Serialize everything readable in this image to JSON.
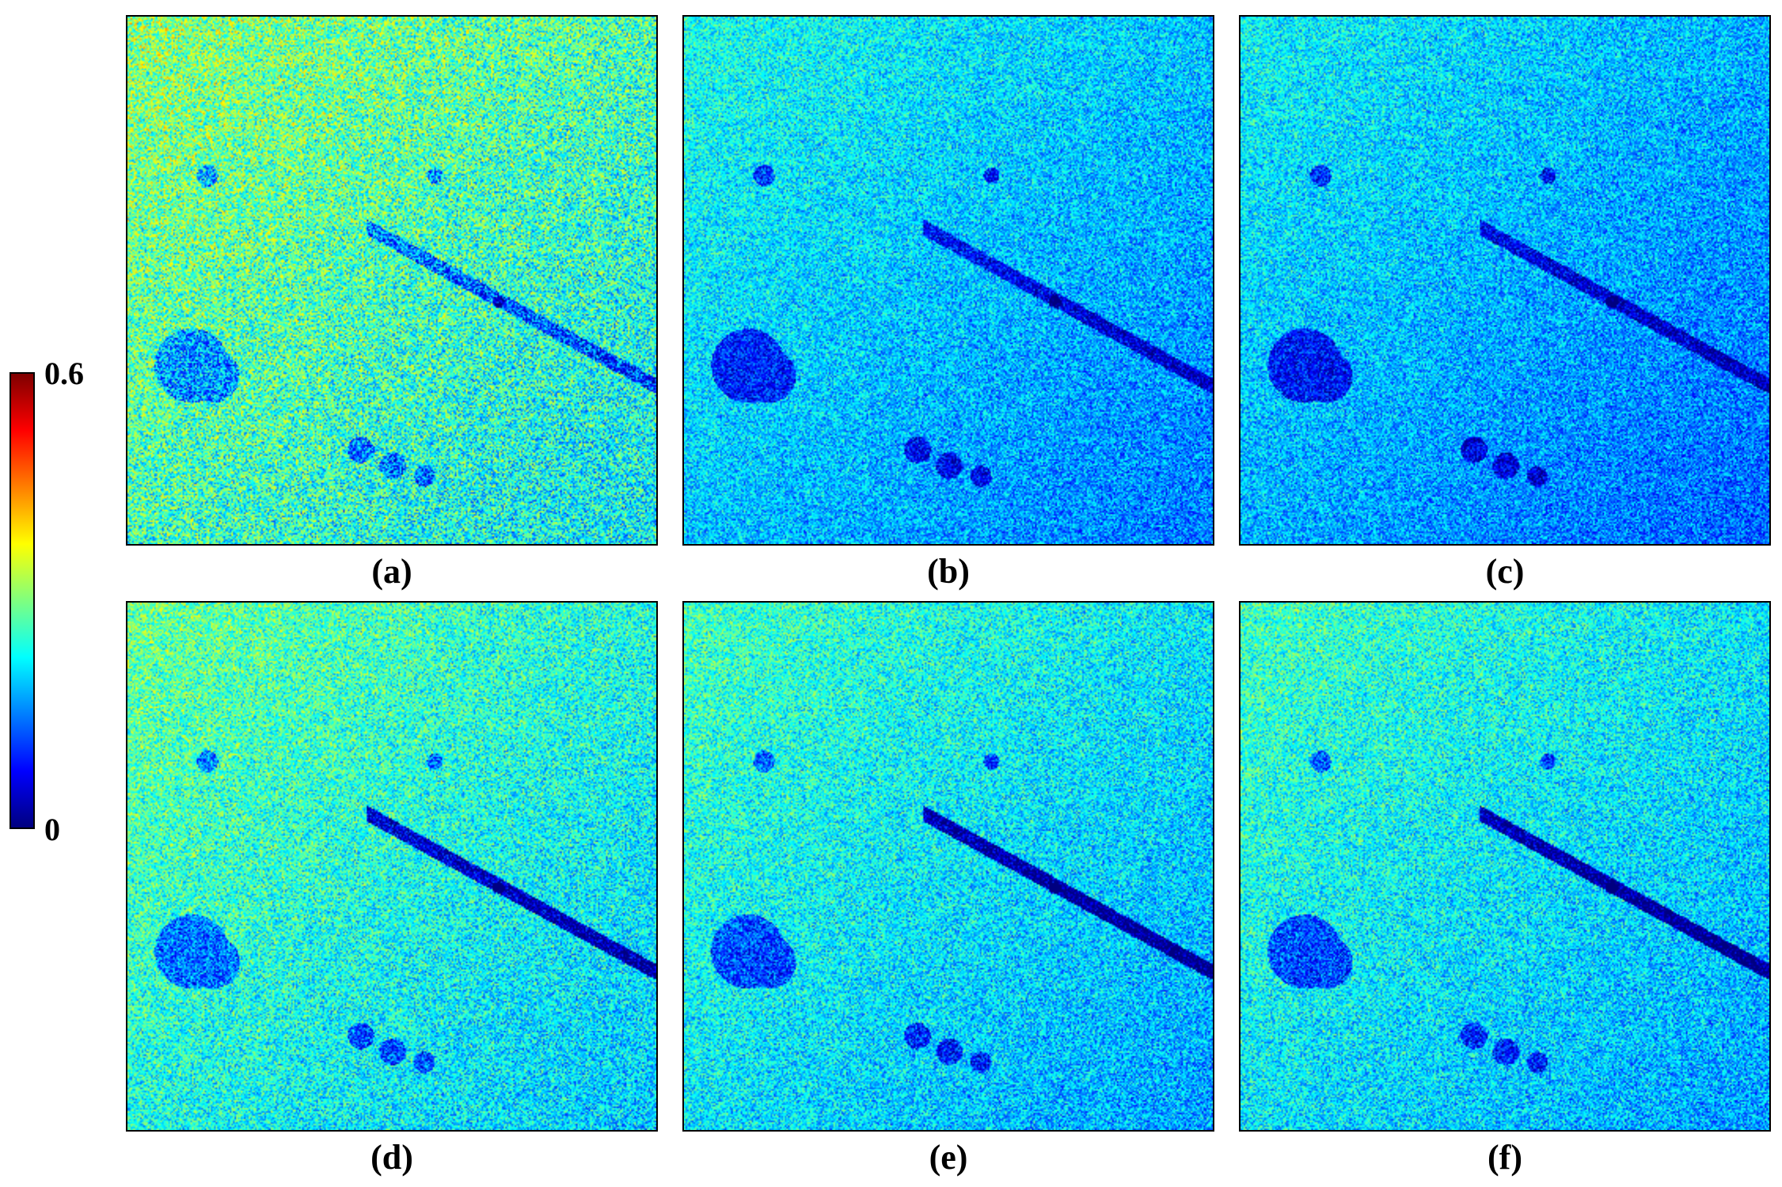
{
  "colorbar": {
    "max_label": "0.6",
    "min_label": "0",
    "colormap": "jet",
    "colors": [
      "#00007f",
      "#0000ff",
      "#007fff",
      "#00ffff",
      "#7fff7f",
      "#ffff00",
      "#ff7f00",
      "#ff0000",
      "#7f0000"
    ]
  },
  "panels": [
    {
      "caption": "(a)",
      "image": "error-map-a"
    },
    {
      "caption": "(b)",
      "image": "error-map-b"
    },
    {
      "caption": "(c)",
      "image": "error-map-c"
    },
    {
      "caption": "(d)",
      "image": "error-map-d"
    },
    {
      "caption": "(e)",
      "image": "error-map-e"
    },
    {
      "caption": "(f)",
      "image": "error-map-f"
    }
  ]
}
